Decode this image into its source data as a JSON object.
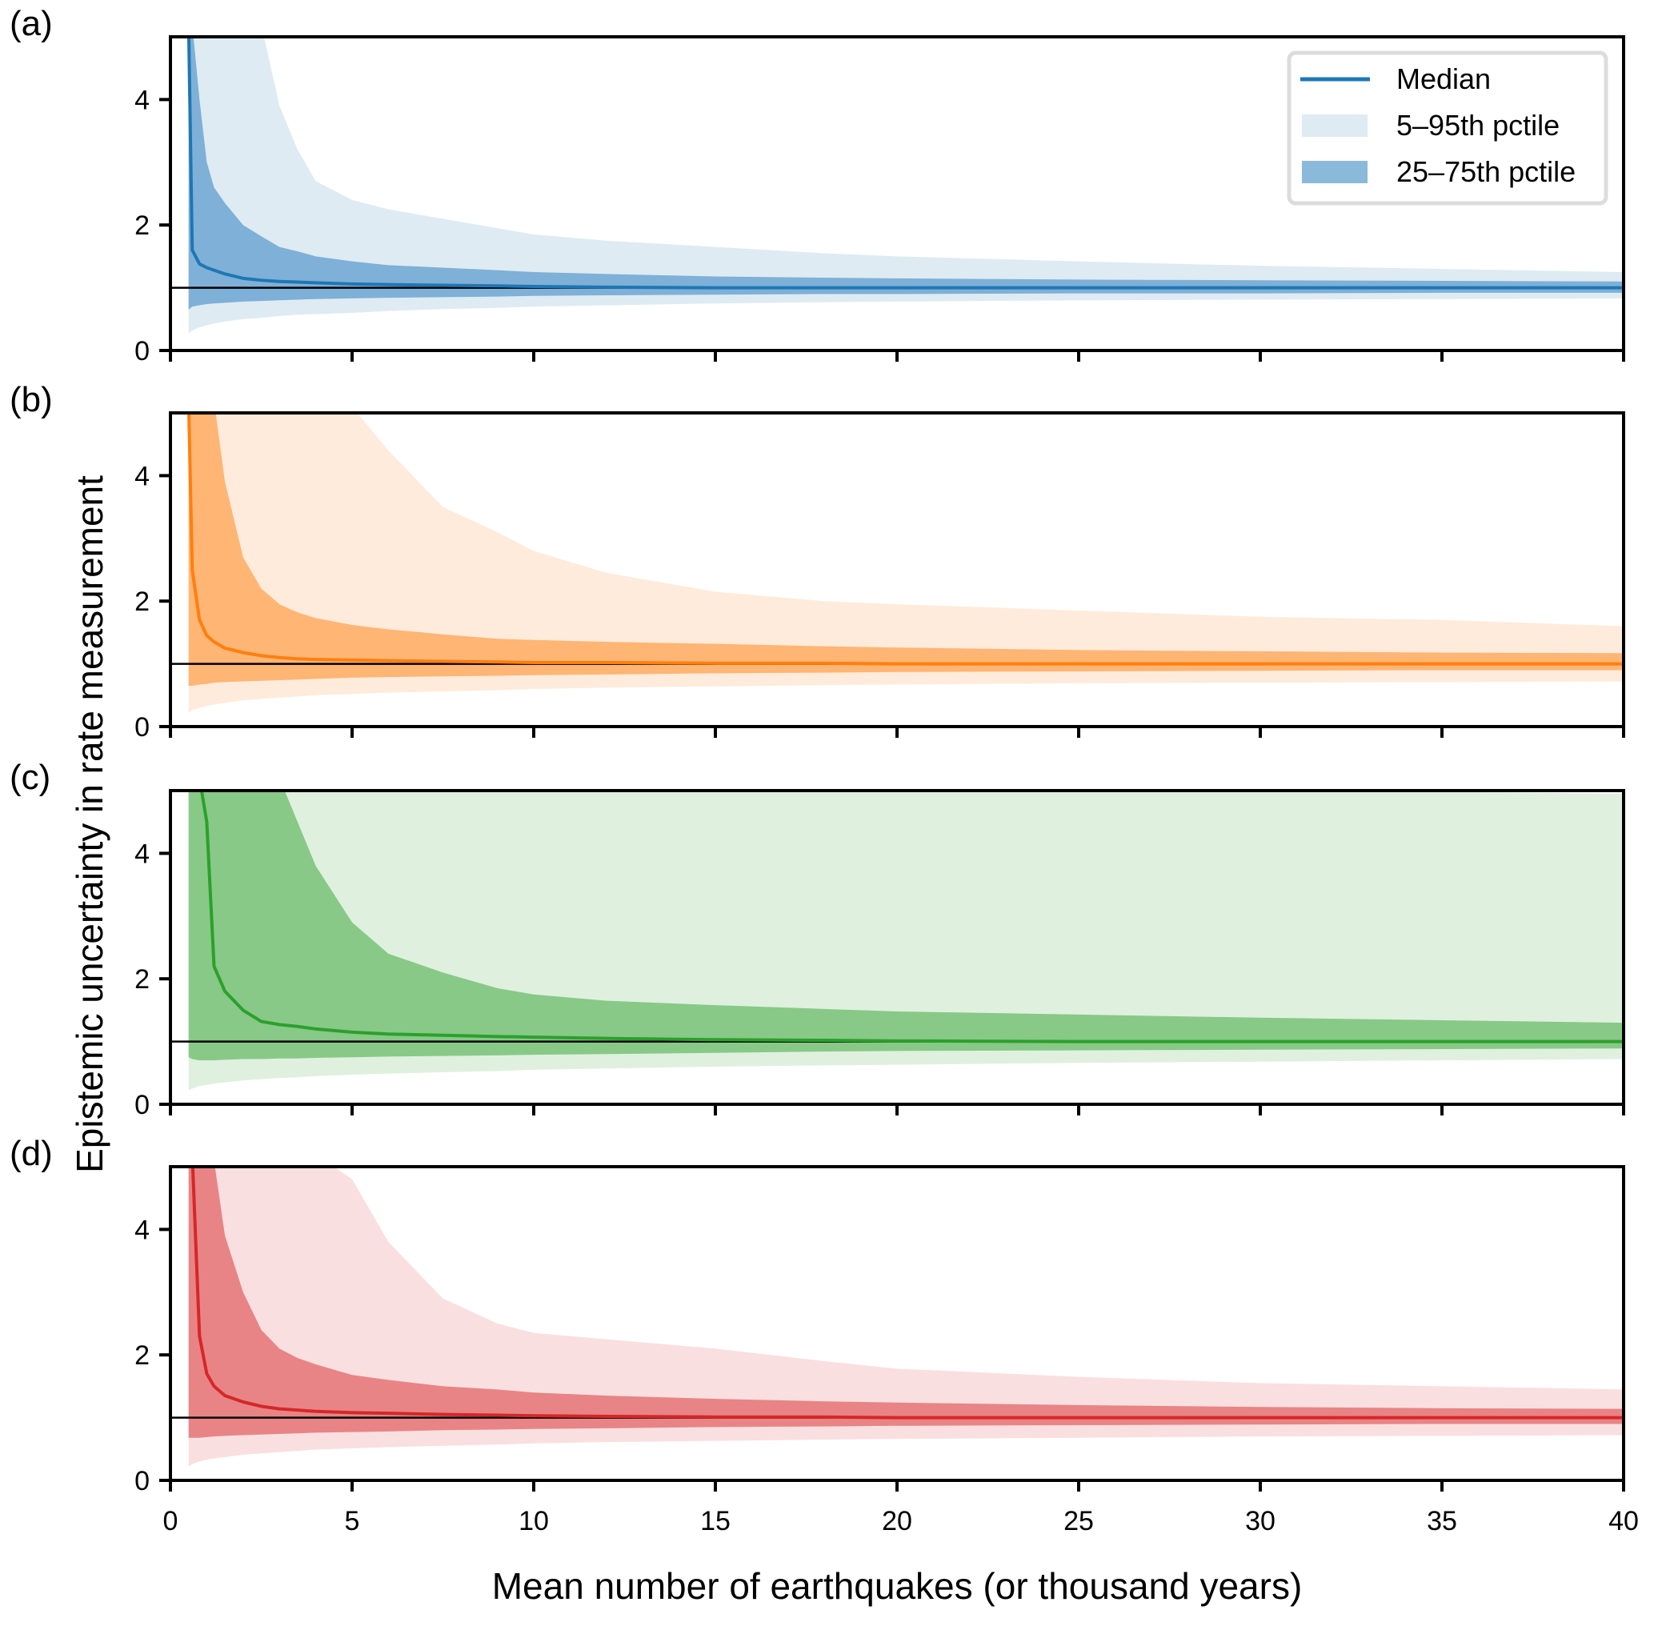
{
  "chart_data": {
    "type": "area",
    "xlabel": "Mean number of earthquakes (or thousand years)",
    "ylabel": "Epistemic uncertainty in rate measurement",
    "xlim": [
      0,
      40
    ],
    "ylim": [
      0,
      5
    ],
    "xticks": [
      "0",
      "5",
      "10",
      "15",
      "20",
      "25",
      "30",
      "35",
      "40"
    ],
    "yticks": [
      "0",
      "2",
      "4"
    ],
    "reference_line": 1,
    "grid": false,
    "legend": {
      "placement": "top-right",
      "panel": "a",
      "entries": [
        "Median",
        "5–95th pctile",
        "25–75th pctile"
      ]
    },
    "x": [
      0.5,
      0.6,
      0.8,
      1.0,
      1.2,
      1.5,
      2.0,
      2.5,
      3.0,
      3.5,
      4.0,
      5.0,
      6.0,
      7.5,
      9.0,
      10.0,
      12.0,
      15.0,
      18.0,
      20.0,
      25.0,
      30.0,
      35.0,
      40.0
    ],
    "panels": [
      {
        "label": "(a)",
        "color": "#1f77b4",
        "band_outer_color": "#deebf3",
        "band_inner_color": "#7fb0d7",
        "p95": [
          6,
          6,
          6,
          6,
          6,
          6,
          6,
          5.4,
          3.9,
          3.2,
          2.7,
          2.4,
          2.25,
          2.1,
          1.95,
          1.85,
          1.75,
          1.65,
          1.55,
          1.5,
          1.42,
          1.35,
          1.3,
          1.25
        ],
        "p75": [
          6,
          6,
          4.0,
          3.0,
          2.6,
          2.35,
          2.0,
          1.82,
          1.65,
          1.58,
          1.5,
          1.42,
          1.36,
          1.32,
          1.28,
          1.25,
          1.22,
          1.18,
          1.16,
          1.15,
          1.13,
          1.12,
          1.11,
          1.1
        ],
        "median": [
          6,
          1.6,
          1.38,
          1.32,
          1.28,
          1.22,
          1.15,
          1.12,
          1.1,
          1.09,
          1.08,
          1.06,
          1.05,
          1.04,
          1.03,
          1.02,
          1.01,
          1.0,
          1.0,
          1.0,
          1.0,
          1.0,
          1.0,
          1.0
        ],
        "p25": [
          0.65,
          0.7,
          0.72,
          0.74,
          0.75,
          0.76,
          0.78,
          0.79,
          0.8,
          0.81,
          0.82,
          0.83,
          0.84,
          0.85,
          0.86,
          0.87,
          0.88,
          0.89,
          0.9,
          0.9,
          0.91,
          0.91,
          0.92,
          0.92
        ],
        "p5": [
          0.27,
          0.32,
          0.37,
          0.4,
          0.43,
          0.46,
          0.5,
          0.52,
          0.55,
          0.57,
          0.58,
          0.6,
          0.63,
          0.66,
          0.68,
          0.7,
          0.72,
          0.75,
          0.77,
          0.78,
          0.8,
          0.81,
          0.82,
          0.83
        ]
      },
      {
        "label": "(b)",
        "color": "#ff7f0e",
        "band_outer_color": "#ffebdb",
        "band_inner_color": "#ffb574",
        "p95": [
          6,
          6,
          6,
          6,
          6,
          6,
          6,
          6,
          6,
          6,
          6,
          5.1,
          4.4,
          3.5,
          3.1,
          2.8,
          2.45,
          2.15,
          2.0,
          1.95,
          1.85,
          1.75,
          1.7,
          1.6
        ],
        "p75": [
          6,
          6,
          6,
          6,
          5.2,
          3.9,
          2.7,
          2.2,
          1.95,
          1.82,
          1.73,
          1.62,
          1.55,
          1.47,
          1.4,
          1.38,
          1.35,
          1.32,
          1.28,
          1.26,
          1.22,
          1.2,
          1.18,
          1.17
        ],
        "median": [
          6,
          2.5,
          1.7,
          1.45,
          1.35,
          1.25,
          1.18,
          1.13,
          1.1,
          1.08,
          1.07,
          1.06,
          1.05,
          1.04,
          1.03,
          1.02,
          1.02,
          1.01,
          1.01,
          1.0,
          1.0,
          1.0,
          1.0,
          1.0
        ],
        "p25": [
          0.65,
          0.65,
          0.67,
          0.68,
          0.7,
          0.71,
          0.72,
          0.73,
          0.74,
          0.75,
          0.76,
          0.78,
          0.79,
          0.8,
          0.81,
          0.82,
          0.83,
          0.85,
          0.86,
          0.87,
          0.88,
          0.89,
          0.9,
          0.9
        ],
        "p5": [
          0.22,
          0.26,
          0.3,
          0.33,
          0.35,
          0.38,
          0.42,
          0.44,
          0.46,
          0.48,
          0.5,
          0.52,
          0.54,
          0.56,
          0.58,
          0.6,
          0.62,
          0.64,
          0.66,
          0.67,
          0.69,
          0.7,
          0.71,
          0.72
        ]
      },
      {
        "label": "(c)",
        "color": "#2ca02c",
        "band_outer_color": "#dff0df",
        "band_inner_color": "#88c987",
        "p95": [
          6,
          6,
          6,
          6,
          6,
          6,
          6,
          6,
          6,
          6,
          6,
          6,
          6,
          6,
          6,
          6,
          6,
          6,
          6,
          6,
          6,
          5.0,
          4.98,
          4.95
        ],
        "p75": [
          6,
          6,
          6,
          6,
          6,
          6,
          6,
          6,
          5.4,
          4.5,
          3.8,
          2.9,
          2.4,
          2.1,
          1.85,
          1.75,
          1.65,
          1.58,
          1.52,
          1.48,
          1.43,
          1.38,
          1.34,
          1.3
        ],
        "median": [
          6,
          6,
          6,
          4.5,
          2.2,
          1.8,
          1.5,
          1.32,
          1.27,
          1.24,
          1.2,
          1.15,
          1.12,
          1.1,
          1.08,
          1.07,
          1.05,
          1.03,
          1.02,
          1.01,
          1.0,
          1.0,
          1.0,
          1.0
        ],
        "p25": [
          0.75,
          0.72,
          0.7,
          0.7,
          0.7,
          0.71,
          0.72,
          0.72,
          0.73,
          0.73,
          0.74,
          0.75,
          0.76,
          0.77,
          0.78,
          0.79,
          0.8,
          0.82,
          0.84,
          0.85,
          0.86,
          0.87,
          0.88,
          0.89
        ],
        "p5": [
          0.22,
          0.25,
          0.29,
          0.31,
          0.33,
          0.35,
          0.38,
          0.4,
          0.42,
          0.43,
          0.45,
          0.47,
          0.49,
          0.51,
          0.53,
          0.55,
          0.57,
          0.6,
          0.62,
          0.63,
          0.66,
          0.68,
          0.7,
          0.72
        ]
      },
      {
        "label": "(d)",
        "color": "#d62728",
        "band_outer_color": "#f9dfe0",
        "band_inner_color": "#e88485",
        "p95": [
          6,
          6,
          6,
          6,
          6,
          6,
          6,
          6,
          6,
          6,
          6,
          4.8,
          3.8,
          2.9,
          2.5,
          2.35,
          2.25,
          2.1,
          1.9,
          1.78,
          1.65,
          1.55,
          1.5,
          1.45
        ],
        "p75": [
          6,
          6,
          6,
          6,
          5.1,
          3.9,
          3.0,
          2.4,
          2.1,
          1.95,
          1.85,
          1.68,
          1.6,
          1.5,
          1.45,
          1.4,
          1.35,
          1.3,
          1.26,
          1.24,
          1.2,
          1.17,
          1.15,
          1.14
        ],
        "median": [
          6,
          6,
          2.3,
          1.7,
          1.5,
          1.35,
          1.25,
          1.18,
          1.14,
          1.12,
          1.1,
          1.08,
          1.07,
          1.05,
          1.04,
          1.03,
          1.02,
          1.01,
          1.01,
          1.0,
          1.0,
          1.0,
          1.0,
          1.0
        ],
        "p25": [
          0.68,
          0.68,
          0.68,
          0.69,
          0.7,
          0.71,
          0.72,
          0.73,
          0.74,
          0.75,
          0.76,
          0.77,
          0.78,
          0.8,
          0.81,
          0.82,
          0.83,
          0.85,
          0.86,
          0.87,
          0.88,
          0.89,
          0.9,
          0.9
        ],
        "p5": [
          0.22,
          0.26,
          0.3,
          0.33,
          0.35,
          0.37,
          0.41,
          0.43,
          0.45,
          0.47,
          0.49,
          0.51,
          0.53,
          0.55,
          0.57,
          0.59,
          0.61,
          0.63,
          0.65,
          0.66,
          0.68,
          0.7,
          0.71,
          0.72
        ]
      }
    ]
  }
}
